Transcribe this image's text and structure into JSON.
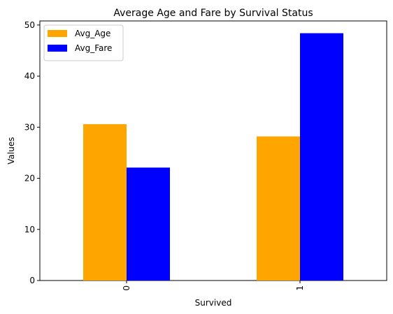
{
  "chart_data": {
    "type": "bar",
    "title": "Average Age and Fare by Survival Status",
    "xlabel": "Survived",
    "ylabel": "Values",
    "categories": [
      "0",
      "1"
    ],
    "series": [
      {
        "name": "Avg_Age",
        "values": [
          30.6,
          28.2
        ],
        "color": "#ffa500"
      },
      {
        "name": "Avg_Fare",
        "values": [
          22.1,
          48.4
        ],
        "color": "#0000ff"
      }
    ],
    "ylim": [
      0,
      50.8
    ],
    "yticks": [
      0,
      10,
      20,
      30,
      40,
      50
    ],
    "legend_position": "top-left",
    "grid": false
  }
}
